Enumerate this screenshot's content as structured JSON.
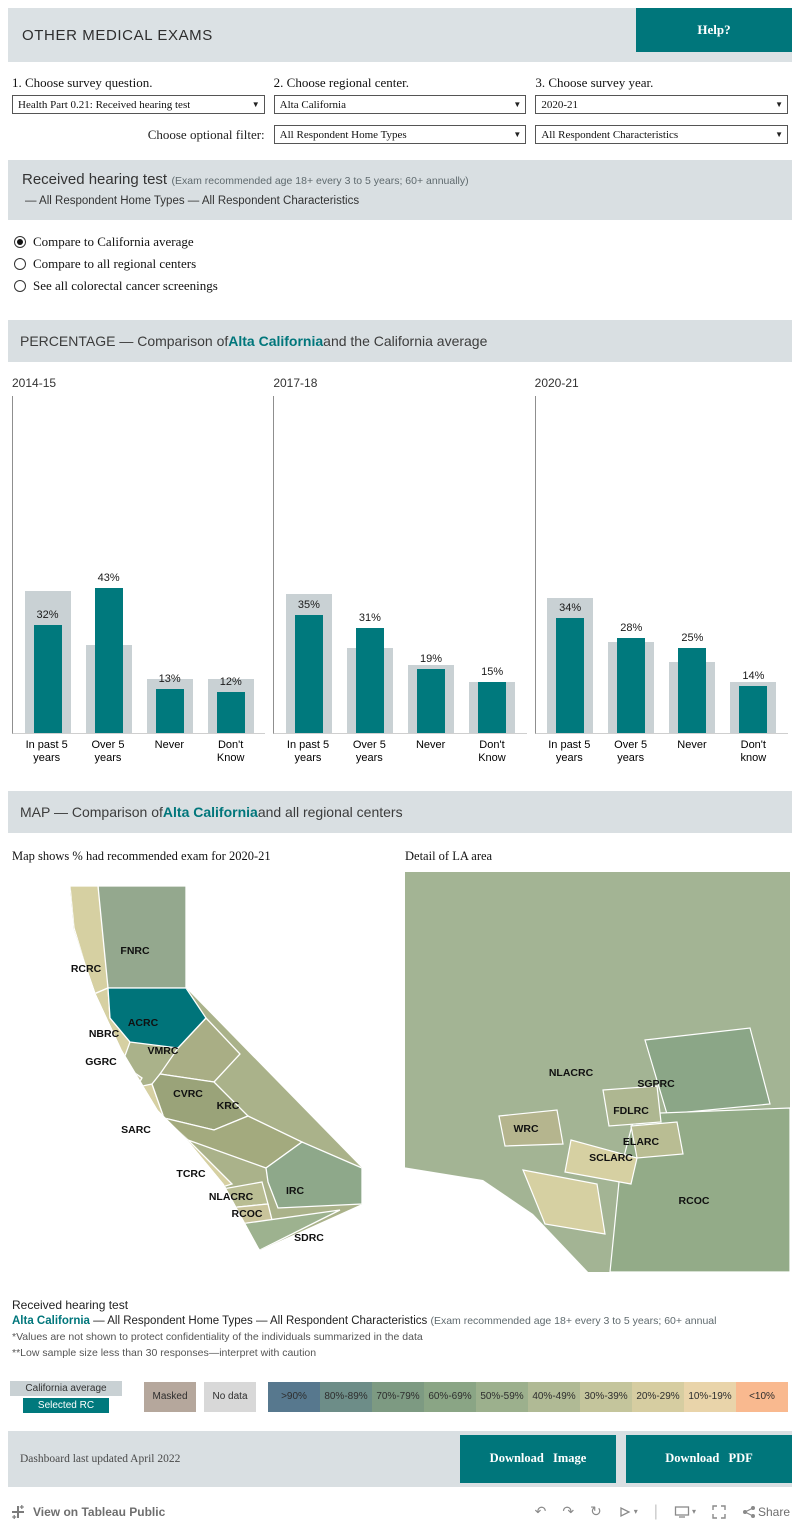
{
  "colors": {
    "accent_teal": "#00767b",
    "bar_teal": "#00797d",
    "bar_gray": "#c9d1d4",
    "section_bg": "#d9dfe2"
  },
  "header": {
    "title": "OTHER MEDICAL EXAMS",
    "help_label": "Help?"
  },
  "filters": {
    "q1_label": "1. Choose survey question.",
    "q1_value": "Health Part 0.21: Received hearing test",
    "q2_label": "2. Choose regional center.",
    "q2_value": "Alta California",
    "q3_label": "3. Choose survey year.",
    "q3_value": "2020-21",
    "optional_label": "Choose optional filter:",
    "opt1_value": "All Respondent Home Types",
    "opt2_value": "All Respondent Characteristics"
  },
  "info_box": {
    "title": "Received hearing test",
    "note": "(Exam recommended age 18+ every 3 to 5 years; 60+ annually)",
    "subtitle": "— All Respondent Home Types — All Respondent Characteristics"
  },
  "radio_options": [
    {
      "label": "Compare to California average",
      "selected": true
    },
    {
      "label": "Compare to all regional centers",
      "selected": false
    },
    {
      "label": "See all colorectal cancer screenings",
      "selected": false
    }
  ],
  "percentage_section": {
    "prefix": "PERCENTAGE — Comparison of ",
    "highlight": "Alta California",
    "suffix": " and the California average"
  },
  "chart_data": {
    "type": "bar",
    "ylim": [
      0,
      100
    ],
    "legend": [
      "California average",
      "Selected RC"
    ],
    "panels": [
      {
        "year": "2014-15",
        "categories": [
          "In past 5\nyears",
          "Over 5\nyears",
          "Never",
          "Don't\nKnow"
        ],
        "rc_values": [
          32,
          43,
          13,
          12
        ],
        "rc_labels": [
          "32%",
          "43%",
          "13%",
          "12%"
        ],
        "ca_values": [
          42,
          26,
          16,
          16
        ]
      },
      {
        "year": "2017-18",
        "categories": [
          "In past 5\nyears",
          "Over 5\nyears",
          "Never",
          "Don't\nKnow"
        ],
        "rc_values": [
          35,
          31,
          19,
          15
        ],
        "rc_labels": [
          "35%",
          "31%",
          "19%",
          "15%"
        ],
        "ca_values": [
          41,
          25,
          20,
          15
        ]
      },
      {
        "year": "2020-21",
        "categories": [
          "In past 5\nyears",
          "Over 5\nyears",
          "Never",
          "Don't\nknow"
        ],
        "rc_values": [
          34,
          28,
          25,
          14
        ],
        "rc_labels": [
          "34%",
          "28%",
          "25%",
          "14%"
        ],
        "ca_values": [
          40,
          27,
          21,
          15
        ]
      }
    ]
  },
  "map_section": {
    "prefix": "MAP — Comparison of ",
    "highlight": "Alta California",
    "suffix": " and all regional centers"
  },
  "maps": {
    "left_title": "Map shows % had recommended exam for 2020-21",
    "right_title": "Detail of LA area",
    "left_labels": [
      "FNRC",
      "RCRC",
      "ACRC",
      "NBRC",
      "VMRC",
      "GGRC",
      "CVRC",
      "KRC",
      "SARC",
      "TCRC",
      "NLACRC",
      "IRC",
      "RCOC",
      "SDRC"
    ],
    "right_labels": [
      "NLACRC",
      "SGPRC",
      "FDLRC",
      "WRC",
      "ELARC",
      "SCLARC",
      "RCOC"
    ]
  },
  "map_footer": {
    "line1": "Received hearing test",
    "line2_highlight": "Alta California",
    "line2_rest": " — All Respondent Home Types — All Respondent Characteristics ",
    "line2_note": "(Exam recommended age 18+ every 3 to 5 years; 60+ annual",
    "line3": "*Values are not shown to protect confidentiality of the individuals summarized in the data",
    "line4": "**Low sample size less than 30 responses—interpret with caution"
  },
  "legend": {
    "ca_average": {
      "label": "California average",
      "color": "#c9d1d4"
    },
    "selected_rc": {
      "label": "Selected RC",
      "color": "#00797d"
    },
    "special_items": [
      {
        "label": "Masked",
        "color": "#b5a79c"
      },
      {
        "label": "No data",
        "color": "#d8d8d8"
      }
    ],
    "ramp_items": [
      {
        "label": ">90%",
        "color": "#57788e"
      },
      {
        "label": "80%-89%",
        "color": "#6d8d88"
      },
      {
        "label": "70%-79%",
        "color": "#7d9a82"
      },
      {
        "label": "60%-69%",
        "color": "#8aa585"
      },
      {
        "label": "50%-59%",
        "color": "#9cb08d"
      },
      {
        "label": "40%-49%",
        "color": "#b0ba95"
      },
      {
        "label": "30%-39%",
        "color": "#c4c59c"
      },
      {
        "label": "20%-29%",
        "color": "#d6cda1"
      },
      {
        "label": "10%-19%",
        "color": "#e9d4aa"
      },
      {
        "label": "<10%",
        "color": "#f9b98f"
      }
    ]
  },
  "footer": {
    "updated": "Dashboard last updated April 2022",
    "btn_image": "Download Image",
    "btn_pdf": "Download PDF"
  },
  "toolbar": {
    "view_label": "View on Tableau Public",
    "share_label": "Share"
  }
}
